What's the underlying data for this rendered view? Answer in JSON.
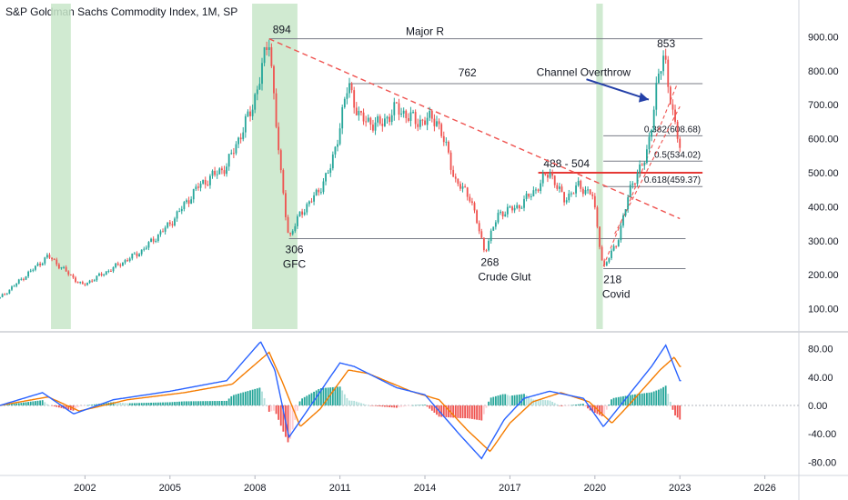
{
  "header": {
    "title": "S&P Goldman Sachs Commodity Index, 1M, SP"
  },
  "colors": {
    "up": "#26a69a",
    "down": "#ef5350",
    "shade": "#c8e6c9",
    "trend": "#ef5350",
    "support": "#e53935",
    "macd": "#2962ff",
    "signal": "#f57c00",
    "arrow": "#2440a8",
    "level": "#787b86"
  },
  "chart_data": [
    {
      "type": "candlestick",
      "title": "S&P Goldman Sachs Commodity Index, 1M, SP",
      "ylim": [
        40,
        960
      ],
      "yticks": [
        "100.00",
        "200.00",
        "300.00",
        "400.00",
        "500.00",
        "600.00",
        "700.00",
        "800.00",
        "900.00"
      ],
      "xlim": [
        1999.0,
        2027.2
      ],
      "xticks": [
        "2002",
        "2005",
        "2008",
        "2011",
        "2014",
        "2017",
        "2020",
        "2023",
        "2026"
      ],
      "shaded_ranges": [
        [
          2000.8,
          2001.5
        ],
        [
          2007.9,
          2009.5
        ],
        [
          2020.05,
          2020.28
        ]
      ],
      "price_path": [
        [
          1999.0,
          132
        ],
        [
          2000.7,
          255
        ],
        [
          2001.9,
          168
        ],
        [
          2003.0,
          220
        ],
        [
          2004.0,
          270
        ],
        [
          2005.0,
          350
        ],
        [
          2006.0,
          460
        ],
        [
          2007.0,
          520
        ],
        [
          2007.9,
          690
        ],
        [
          2008.5,
          894
        ],
        [
          2008.9,
          500
        ],
        [
          2009.2,
          306
        ],
        [
          2009.6,
          380
        ],
        [
          2010.2,
          440
        ],
        [
          2010.7,
          520
        ],
        [
          2011.3,
          762
        ],
        [
          2011.7,
          660
        ],
        [
          2012.4,
          640
        ],
        [
          2013.0,
          690
        ],
        [
          2013.7,
          650
        ],
        [
          2014.4,
          660
        ],
        [
          2014.8,
          560
        ],
        [
          2015.1,
          470
        ],
        [
          2015.6,
          430
        ],
        [
          2016.1,
          268
        ],
        [
          2016.6,
          380
        ],
        [
          2017.3,
          400
        ],
        [
          2017.9,
          450
        ],
        [
          2018.4,
          504
        ],
        [
          2018.9,
          420
        ],
        [
          2019.4,
          460
        ],
        [
          2019.9,
          440
        ],
        [
          2020.3,
          218
        ],
        [
          2020.8,
          300
        ],
        [
          2021.3,
          470
        ],
        [
          2021.8,
          540
        ],
        [
          2022.2,
          760
        ],
        [
          2022.45,
          853
        ],
        [
          2022.8,
          640
        ],
        [
          2023.0,
          580
        ]
      ],
      "levels": [
        {
          "label": "Major R",
          "value": 894
        },
        {
          "label": "",
          "value": 762
        },
        {
          "label": "0.382(608.68)",
          "value": 608.68
        },
        {
          "label": "0.5(534.02)",
          "value": 534.02
        },
        {
          "label": "0.618(459.37)",
          "value": 459.37
        },
        {
          "label": "",
          "value": 306
        },
        {
          "label": "",
          "value": 218
        }
      ],
      "support_zone": {
        "label": "488 - 504",
        "value": 500
      },
      "annotations": [
        {
          "text": "894",
          "x": 2008.5,
          "y": 894
        },
        {
          "text": "762",
          "x": 2011.3,
          "y": 762
        },
        {
          "text": "853",
          "x": 2022.45,
          "y": 853
        },
        {
          "text": "306",
          "x": 2009.2,
          "y": 306
        },
        {
          "text": "GFC",
          "x": 2009.2,
          "y": 306
        },
        {
          "text": "268",
          "x": 2016.1,
          "y": 268
        },
        {
          "text": "Crude Glut",
          "x": 2016.1,
          "y": 268
        },
        {
          "text": "218",
          "x": 2020.3,
          "y": 218
        },
        {
          "text": "Covid",
          "x": 2020.3,
          "y": 218
        },
        {
          "text": "Channel Overthrow",
          "x": 2018.5,
          "y": 785
        }
      ]
    },
    {
      "type": "macd",
      "ylim": [
        -95,
        100
      ],
      "yticks": [
        "80.00",
        "40.00",
        "0.00",
        "-40.00",
        "-80.00"
      ],
      "macd_path": [
        [
          1999.0,
          0
        ],
        [
          2000.5,
          18
        ],
        [
          2001.6,
          -12
        ],
        [
          2003.0,
          8
        ],
        [
          2005.0,
          20
        ],
        [
          2007.0,
          35
        ],
        [
          2008.2,
          90
        ],
        [
          2008.7,
          50
        ],
        [
          2009.2,
          -45
        ],
        [
          2009.8,
          -10
        ],
        [
          2011.0,
          60
        ],
        [
          2011.5,
          55
        ],
        [
          2013.0,
          25
        ],
        [
          2014.0,
          15
        ],
        [
          2015.2,
          -40
        ],
        [
          2016.0,
          -75
        ],
        [
          2016.8,
          -20
        ],
        [
          2017.5,
          10
        ],
        [
          2018.4,
          20
        ],
        [
          2019.6,
          10
        ],
        [
          2020.3,
          -30
        ],
        [
          2021.0,
          5
        ],
        [
          2022.0,
          55
        ],
        [
          2022.5,
          85
        ],
        [
          2023.0,
          35
        ]
      ],
      "signal_path": [
        [
          1999.0,
          0
        ],
        [
          2000.7,
          12
        ],
        [
          2001.8,
          -8
        ],
        [
          2003.5,
          8
        ],
        [
          2005.5,
          18
        ],
        [
          2007.2,
          30
        ],
        [
          2008.5,
          75
        ],
        [
          2009.0,
          30
        ],
        [
          2009.6,
          -30
        ],
        [
          2010.3,
          -5
        ],
        [
          2011.3,
          50
        ],
        [
          2012.0,
          45
        ],
        [
          2013.5,
          20
        ],
        [
          2014.5,
          8
        ],
        [
          2015.5,
          -35
        ],
        [
          2016.3,
          -65
        ],
        [
          2017.0,
          -25
        ],
        [
          2017.8,
          5
        ],
        [
          2018.8,
          18
        ],
        [
          2019.8,
          5
        ],
        [
          2020.6,
          -25
        ],
        [
          2021.3,
          5
        ],
        [
          2022.3,
          50
        ],
        [
          2022.8,
          68
        ],
        [
          2023.0,
          55
        ]
      ]
    }
  ]
}
